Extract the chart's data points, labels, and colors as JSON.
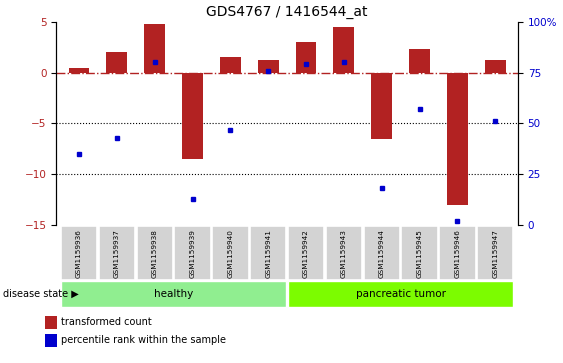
{
  "title": "GDS4767 / 1416544_at",
  "samples": [
    "GSM1159936",
    "GSM1159937",
    "GSM1159938",
    "GSM1159939",
    "GSM1159940",
    "GSM1159941",
    "GSM1159942",
    "GSM1159943",
    "GSM1159944",
    "GSM1159945",
    "GSM1159946",
    "GSM1159947"
  ],
  "red_bars": [
    0.5,
    2.0,
    4.8,
    -8.5,
    1.5,
    1.2,
    3.0,
    4.5,
    -6.5,
    2.3,
    -13.0,
    1.2
  ],
  "blue_dots_right_pct": [
    35,
    43,
    80,
    13,
    47,
    76,
    79,
    80,
    18,
    57,
    2,
    51
  ],
  "ylim_left": [
    -15,
    5
  ],
  "ylim_right": [
    0,
    100
  ],
  "yticks_left": [
    5,
    0,
    -5,
    -10,
    -15
  ],
  "yticks_right": [
    100,
    75,
    50,
    25,
    0
  ],
  "red_bar_color": "#b22222",
  "blue_dot_color": "#0000cd",
  "healthy_samples": 6,
  "healthy_label": "healthy",
  "tumor_label": "pancreatic tumor",
  "healthy_color": "#90EE90",
  "tumor_color": "#7CFC00",
  "disease_state_label": "disease state",
  "legend_red": "transformed count",
  "legend_blue": "percentile rank within the sample",
  "bar_width": 0.55
}
